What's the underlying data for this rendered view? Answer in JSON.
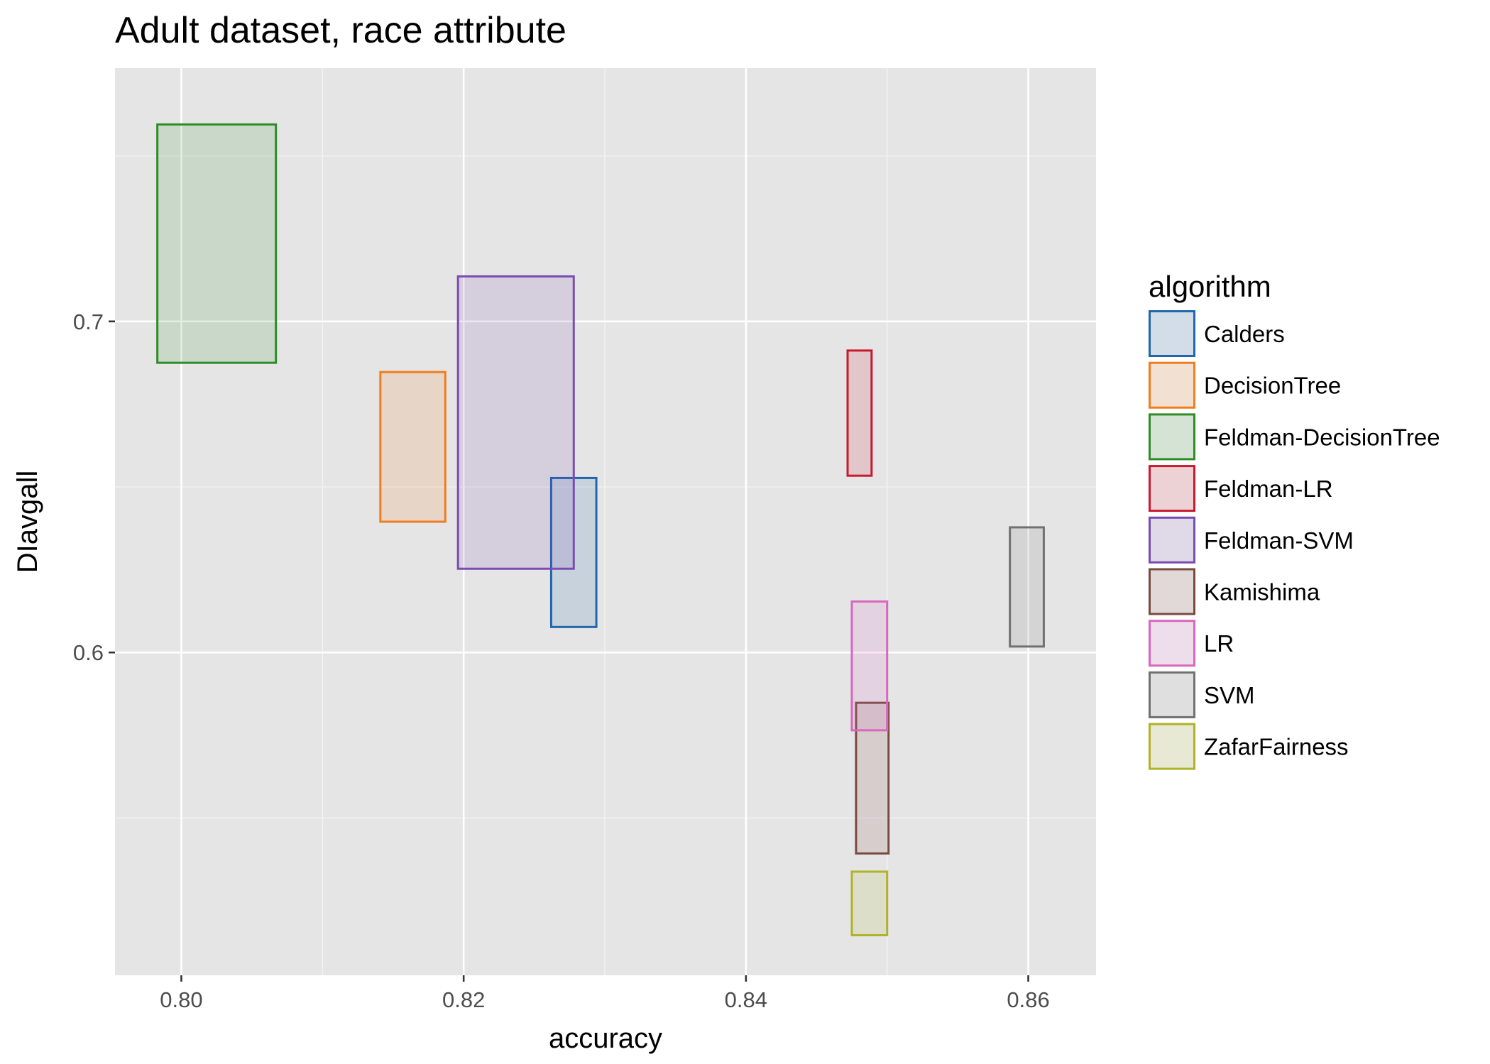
{
  "chart_data": {
    "type": "rectangle-range",
    "title": "Adult dataset, race attribute",
    "xlabel": "accuracy",
    "ylabel": "DIavgall",
    "xlim": [
      0.7953,
      0.8648
    ],
    "ylim": [
      0.5025,
      0.7765
    ],
    "x_ticks": [
      0.8,
      0.82,
      0.84,
      0.86
    ],
    "x_tick_labels": [
      "0.80",
      "0.82",
      "0.84",
      "0.86"
    ],
    "y_ticks": [
      0.6,
      0.7
    ],
    "y_tick_labels": [
      "0.6",
      "0.7"
    ],
    "grid": true,
    "legend": {
      "title": "algorithm",
      "position": "right"
    },
    "series": [
      {
        "name": "Calders",
        "color": "#2166ac",
        "x": [
          0.8262,
          0.8294
        ],
        "y": [
          0.6077,
          0.6527
        ]
      },
      {
        "name": "DecisionTree",
        "color": "#f07d1e",
        "x": [
          0.8141,
          0.8187
        ],
        "y": [
          0.6395,
          0.6847
        ]
      },
      {
        "name": "Feldman-DecisionTree",
        "color": "#2e8b25",
        "x": [
          0.7983,
          0.8067
        ],
        "y": [
          0.6875,
          0.7595
        ]
      },
      {
        "name": "Feldman-LR",
        "color": "#c8192e",
        "x": [
          0.8472,
          0.8489
        ],
        "y": [
          0.6534,
          0.6912
        ]
      },
      {
        "name": "Feldman-SVM",
        "color": "#7b4bb0",
        "x": [
          0.8196,
          0.8278
        ],
        "y": [
          0.6253,
          0.7136
        ]
      },
      {
        "name": "Kamishima",
        "color": "#7a4a42",
        "x": [
          0.8478,
          0.8501
        ],
        "y": [
          0.5393,
          0.5848
        ]
      },
      {
        "name": "LR",
        "color": "#d867bd",
        "x": [
          0.8475,
          0.85
        ],
        "y": [
          0.5765,
          0.6154
        ]
      },
      {
        "name": "SVM",
        "color": "#717171",
        "x": [
          0.8587,
          0.8611
        ],
        "y": [
          0.6018,
          0.6378
        ]
      },
      {
        "name": "ZafarFairness",
        "color": "#b0b229",
        "x": [
          0.8475,
          0.85
        ],
        "y": [
          0.5146,
          0.5338
        ]
      }
    ]
  }
}
